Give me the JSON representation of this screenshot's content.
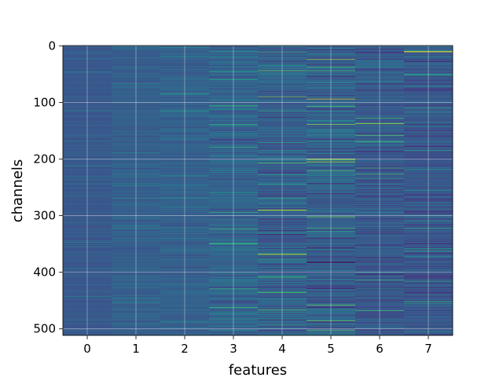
{
  "chart_data": {
    "type": "heatmap",
    "title": "",
    "xlabel": "features",
    "ylabel": "channels",
    "colormap": "viridis",
    "grid": true,
    "x_categories": [
      0,
      1,
      2,
      3,
      4,
      5,
      6,
      7
    ],
    "xticks": [
      "0",
      "1",
      "2",
      "3",
      "4",
      "5",
      "6",
      "7"
    ],
    "yticks": [
      0,
      100,
      200,
      300,
      400,
      500
    ],
    "ytick_labels": [
      "0",
      "100",
      "200",
      "300",
      "400",
      "500"
    ],
    "ylim": [
      511.5,
      -0.5
    ],
    "rows": 512,
    "columns": [
      {
        "feature": 0,
        "mean": 0.28,
        "spread": 0.05
      },
      {
        "feature": 1,
        "mean": 0.3,
        "spread": 0.07
      },
      {
        "feature": 2,
        "mean": 0.31,
        "spread": 0.09
      },
      {
        "feature": 3,
        "mean": 0.32,
        "spread": 0.14
      },
      {
        "feature": 4,
        "mean": 0.3,
        "spread": 0.16
      },
      {
        "feature": 5,
        "mean": 0.3,
        "spread": 0.2
      },
      {
        "feature": 6,
        "mean": 0.28,
        "spread": 0.16
      },
      {
        "feature": 7,
        "mean": 0.27,
        "spread": 0.14
      }
    ],
    "notable_cells": [
      {
        "feature": 7,
        "channel": 10,
        "value": 0.95
      },
      {
        "feature": 5,
        "channel": 382,
        "value": 0.0
      },
      {
        "feature": 4,
        "channel": 290,
        "value": 0.85
      },
      {
        "feature": 6,
        "channel": 137,
        "value": 0.8
      },
      {
        "feature": 5,
        "channel": 200,
        "value": 0.85
      },
      {
        "feature": 4,
        "channel": 368,
        "value": 0.85
      }
    ]
  }
}
